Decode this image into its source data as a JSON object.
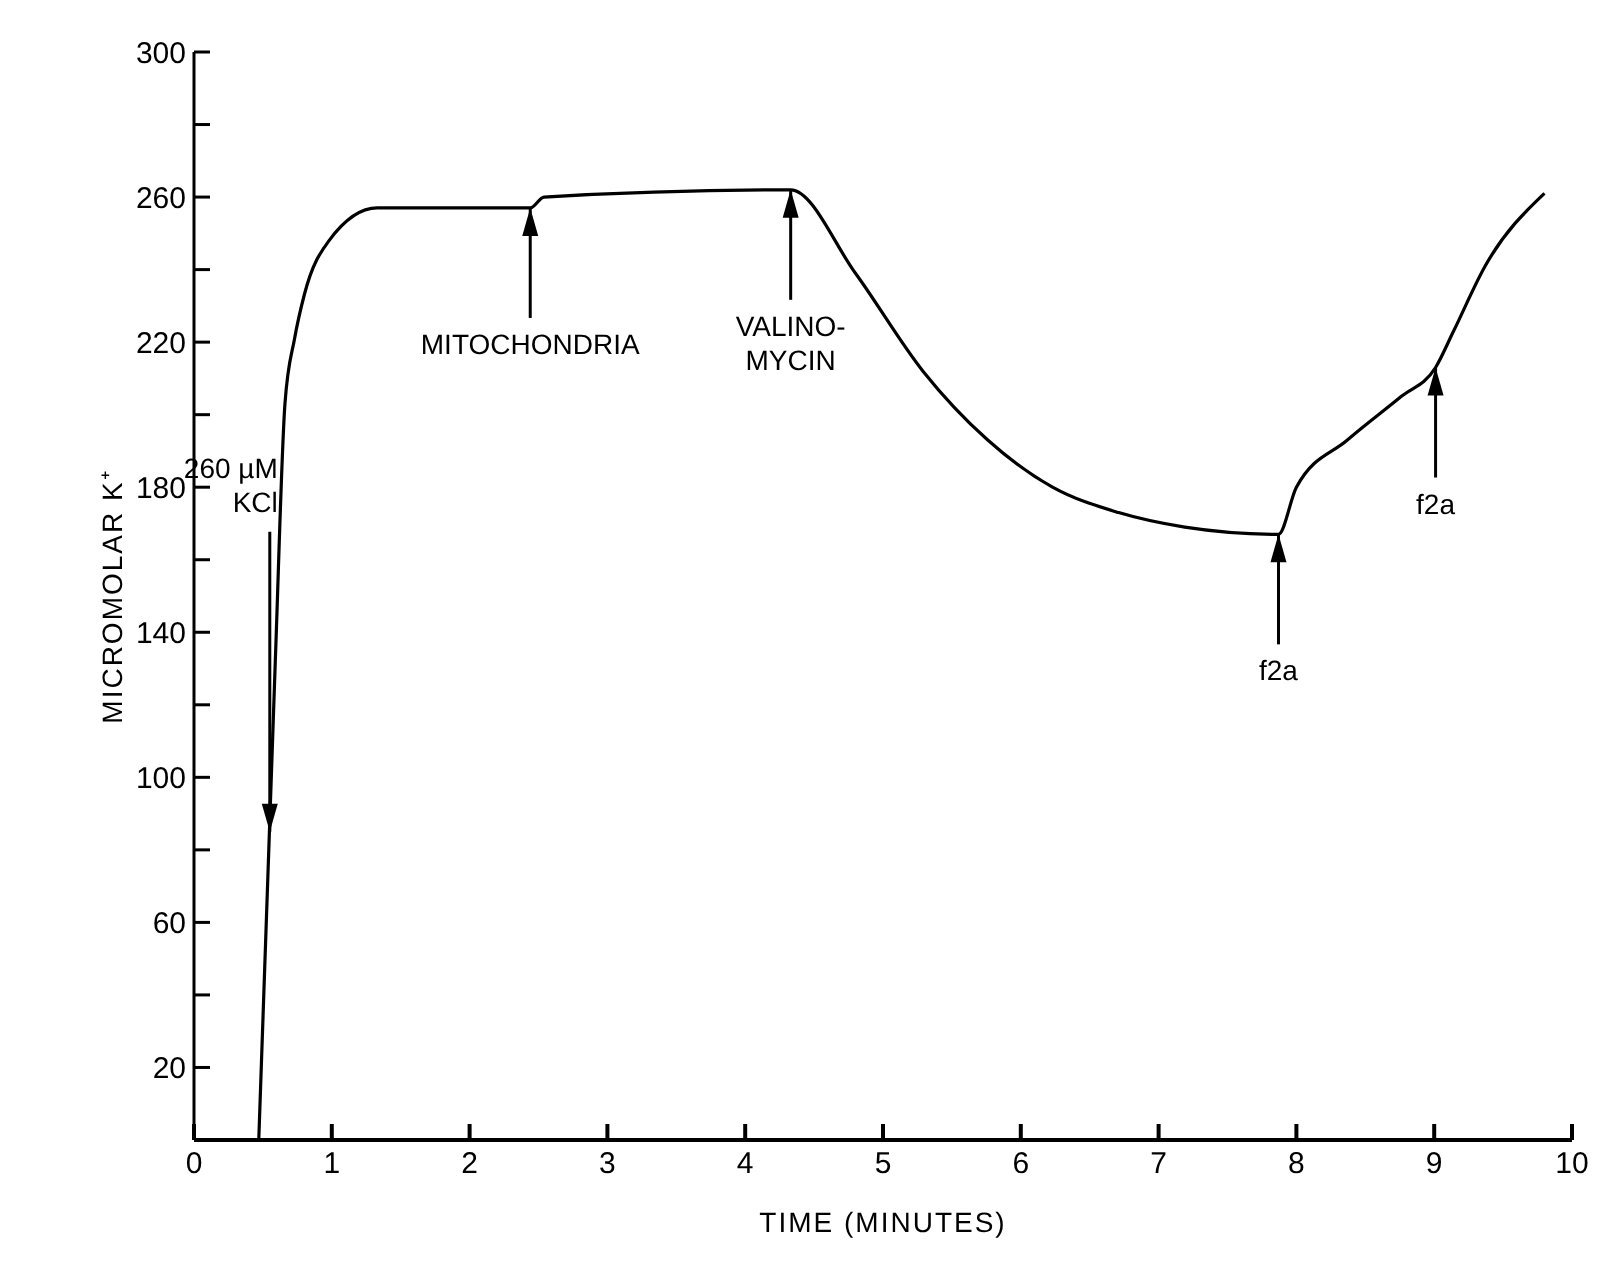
{
  "chart_data": {
    "type": "line",
    "xlabel": "TIME (MINUTES)",
    "ylabel": "MICROMOLAR K⁺",
    "x": [
      0.47,
      0.59,
      0.66,
      0.73,
      0.8,
      0.98,
      1.33,
      2.44,
      2.54,
      4.33,
      4.8,
      5.29,
      5.76,
      6.23,
      6.71,
      7.19,
      7.87,
      8.0,
      8.37,
      8.76,
      9.01,
      9.14,
      9.37,
      9.8
    ],
    "series": [
      {
        "color": "#000000",
        "values": [
          0,
          132,
          203,
          221,
          233,
          248,
          257,
          257,
          260,
          262,
          239,
          212,
          193,
          180,
          173,
          169,
          167,
          180,
          193,
          205,
          213,
          223,
          241,
          261
        ]
      }
    ],
    "xlim": [
      0,
      10
    ],
    "xticks": [
      0,
      1,
      2,
      3,
      4,
      5,
      6,
      7,
      8,
      9,
      10
    ],
    "ylim": [
      0,
      300
    ],
    "yticks": [
      20,
      {
        "value": 40,
        "label": null
      },
      60,
      {
        "value": 80,
        "label": null
      },
      100,
      {
        "value": 120,
        "label": null
      },
      140,
      {
        "value": 160,
        "label": null
      },
      180,
      {
        "value": 200,
        "label": null
      },
      220,
      {
        "value": 240,
        "label": null
      },
      260,
      {
        "value": 280,
        "label": null
      },
      300
    ],
    "annotations": [
      {
        "text": "260 µM\nKCl",
        "x": 0.55,
        "y": 85
      },
      {
        "text": "MITOCHONDRIA",
        "x": 2.44,
        "y": 257
      },
      {
        "text": "VALINO-\nMYCIN",
        "x": 4.33,
        "y": 262
      },
      {
        "text": "f2a",
        "x": 7.87,
        "y": 167
      },
      {
        "text": "f2a",
        "x": 9.01,
        "y": 213
      }
    ],
    "grid": false,
    "legend": false,
    "marker": "none",
    "line_style": "solid"
  }
}
